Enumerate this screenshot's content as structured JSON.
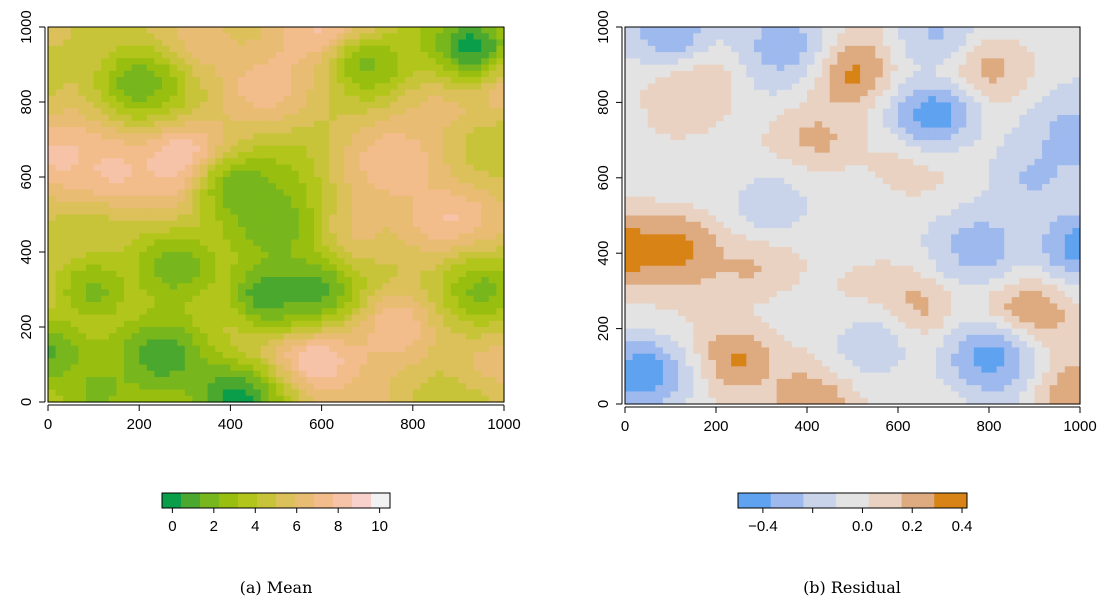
{
  "chart_data": [
    {
      "type": "heatmap",
      "caption": "(a) Mean",
      "xlim": [
        0,
        1000
      ],
      "ylim": [
        0,
        1000
      ],
      "x_ticks": [
        0,
        200,
        400,
        600,
        800,
        1000
      ],
      "y_ticks": [
        0,
        200,
        400,
        600,
        800,
        1000
      ],
      "colorbar": {
        "range": [
          -0.5,
          10.5
        ],
        "ticks": [
          0,
          2,
          4,
          6,
          8,
          10
        ],
        "colors": [
          "#0b9e4a",
          "#4aa82f",
          "#78b61d",
          "#98bf0f",
          "#b2c51a",
          "#c8c43a",
          "#dcc05a",
          "#e9bc74",
          "#f2bd8a",
          "#f6c3a8",
          "#f8d0cc",
          "#f2f2f2"
        ]
      },
      "peaks": [
        {
          "x": 300,
          "y": 640,
          "v": 10
        },
        {
          "x": 640,
          "y": 960,
          "v": 10
        },
        {
          "x": 990,
          "y": 880,
          "v": 9
        },
        {
          "x": 580,
          "y": 130,
          "v": 9.5
        },
        {
          "x": 150,
          "y": 620,
          "v": 8
        },
        {
          "x": 760,
          "y": 640,
          "v": 7.5
        },
        {
          "x": 470,
          "y": 840,
          "v": 7.5
        },
        {
          "x": 880,
          "y": 480,
          "v": 8
        },
        {
          "x": 30,
          "y": 660,
          "v": 8
        },
        {
          "x": 420,
          "y": 300,
          "v": 7.5
        },
        {
          "x": 760,
          "y": 210,
          "v": 8
        },
        {
          "x": 320,
          "y": 940,
          "v": 7
        },
        {
          "x": 130,
          "y": 330,
          "v": 7
        },
        {
          "x": 640,
          "y": 430,
          "v": 7
        },
        {
          "x": 980,
          "y": 120,
          "v": 6.5
        },
        {
          "x": 20,
          "y": 260,
          "v": 7
        },
        {
          "x": 860,
          "y": 830,
          "v": 7
        }
      ],
      "troughs": [
        {
          "x": 930,
          "y": 950,
          "v": 0
        },
        {
          "x": 410,
          "y": 10,
          "v": 0
        },
        {
          "x": 480,
          "y": 290,
          "v": 0.5
        },
        {
          "x": 580,
          "y": 300,
          "v": 1
        },
        {
          "x": 240,
          "y": 120,
          "v": 0.5
        },
        {
          "x": 0,
          "y": 130,
          "v": 1
        },
        {
          "x": 200,
          "y": 850,
          "v": 1.5
        },
        {
          "x": 420,
          "y": 570,
          "v": 1.5
        },
        {
          "x": 280,
          "y": 360,
          "v": 1.5
        },
        {
          "x": 100,
          "y": 300,
          "v": 2
        },
        {
          "x": 500,
          "y": 470,
          "v": 1.5
        },
        {
          "x": 950,
          "y": 300,
          "v": 2
        },
        {
          "x": 700,
          "y": 900,
          "v": 2
        },
        {
          "x": 110,
          "y": 30,
          "v": 2
        }
      ]
    },
    {
      "type": "heatmap",
      "caption": "(b) Residual",
      "xlim": [
        0,
        1000
      ],
      "ylim": [
        0,
        1000
      ],
      "x_ticks": [
        0,
        200,
        400,
        600,
        800,
        1000
      ],
      "y_ticks": [
        0,
        200,
        400,
        600,
        800,
        1000
      ],
      "colorbar": {
        "range": [
          -0.5,
          0.42
        ],
        "ticks": [
          -0.4,
          0.0,
          0.2,
          0.4
        ],
        "tick_labels": [
          "−0.4",
          "0.0",
          "0.2",
          "0.4"
        ],
        "colors": [
          "#5ea2f0",
          "#9db9ee",
          "#c9d4ea",
          "#e3e3e3",
          "#e9d2c2",
          "#deaa7f",
          "#d88316"
        ]
      },
      "peaks": [
        {
          "x": 0,
          "y": 410,
          "v": 0.4
        },
        {
          "x": 130,
          "y": 410,
          "v": 0.35
        },
        {
          "x": 500,
          "y": 880,
          "v": 0.4
        },
        {
          "x": 760,
          "y": 890,
          "v": 0.38
        },
        {
          "x": 880,
          "y": 240,
          "v": 0.38
        },
        {
          "x": 240,
          "y": 120,
          "v": 0.32
        },
        {
          "x": 420,
          "y": 10,
          "v": 0.3
        },
        {
          "x": 150,
          "y": 870,
          "v": 0.22
        },
        {
          "x": 420,
          "y": 700,
          "v": 0.2
        },
        {
          "x": 640,
          "y": 250,
          "v": 0.28
        },
        {
          "x": 280,
          "y": 380,
          "v": 0.2
        },
        {
          "x": 620,
          "y": 650,
          "v": 0.15
        },
        {
          "x": 980,
          "y": 30,
          "v": 0.3
        }
      ],
      "troughs": [
        {
          "x": 40,
          "y": 80,
          "v": -0.48
        },
        {
          "x": 680,
          "y": 770,
          "v": -0.45
        },
        {
          "x": 1000,
          "y": 420,
          "v": -0.45
        },
        {
          "x": 800,
          "y": 120,
          "v": -0.42
        },
        {
          "x": 100,
          "y": 990,
          "v": -0.35
        },
        {
          "x": 350,
          "y": 950,
          "v": -0.3
        },
        {
          "x": 1000,
          "y": 700,
          "v": -0.3
        },
        {
          "x": 780,
          "y": 420,
          "v": -0.3
        },
        {
          "x": 320,
          "y": 530,
          "v": -0.2
        },
        {
          "x": 540,
          "y": 160,
          "v": -0.2
        },
        {
          "x": 900,
          "y": 600,
          "v": -0.25
        },
        {
          "x": 680,
          "y": 980,
          "v": -0.25
        }
      ]
    }
  ]
}
